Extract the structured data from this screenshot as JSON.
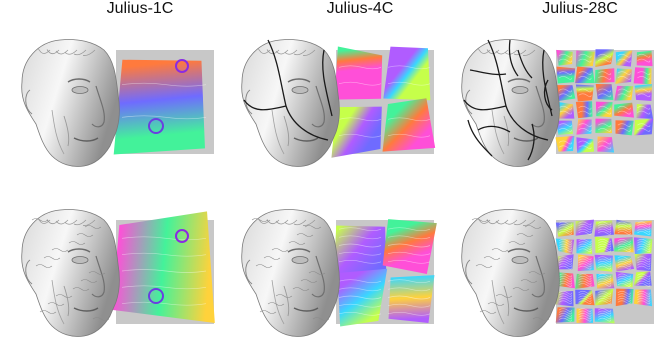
{
  "columns": [
    {
      "title": "Julius-1C",
      "chart_count": 1
    },
    {
      "title": "Julius-4C",
      "chart_count": 4
    },
    {
      "title": "Julius-28C",
      "chart_count": 28
    }
  ],
  "rows": [
    {
      "surface": "smooth-shaded"
    },
    {
      "surface": "normal-mapped"
    }
  ],
  "colors": {
    "background": "#ffffff",
    "atlas_background": "#c8c8c8",
    "chart_border": "#1a1a1a"
  }
}
